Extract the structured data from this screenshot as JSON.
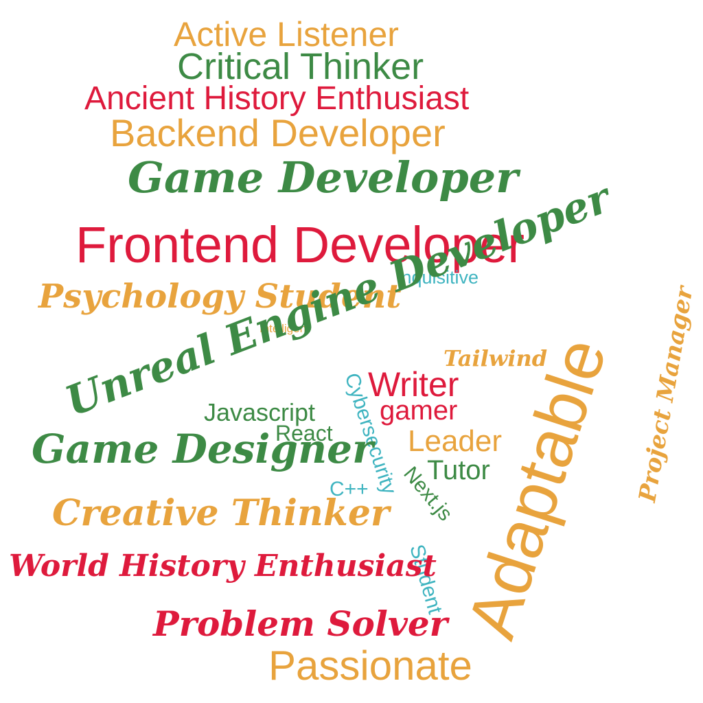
{
  "palette": {
    "orange": "#e8a33d",
    "green": "#3d8a45",
    "red": "#de1a3c",
    "teal": "#3fb4c0",
    "background": "#ffffff"
  },
  "words": {
    "active_listener": "Active Listener",
    "critical_thinker": "Critical Thinker",
    "ancient_history_enthusiast": "Ancient History Enthusiast",
    "backend_developer": "Backend Developer",
    "game_developer": "Game Developer",
    "frontend_developer": "Frontend Developer",
    "inquisitive": "Inquisitive",
    "psychology_student": "Psychology Student",
    "intelligent": "Intelligent",
    "unreal_engine_developer": "Unreal Engine Developer",
    "tailwind": "Tailwind",
    "adaptable": "Adaptable",
    "project_manager": "Project Manager",
    "writer": "Writer",
    "cybersecurity": "Cybersecurity",
    "javascript": "Javascript",
    "gamer": "gamer",
    "react": "React",
    "leader": "Leader",
    "game_designer": "Game Designer",
    "tutor": "Tutor",
    "cpp": "C++",
    "nextjs": "Next.js",
    "creative_thinker": "Creative Thinker",
    "student": "Student",
    "world_history_enthusiast": "World History Enthusiast",
    "problem_solver": "Problem Solver",
    "passionate": "Passionate"
  }
}
